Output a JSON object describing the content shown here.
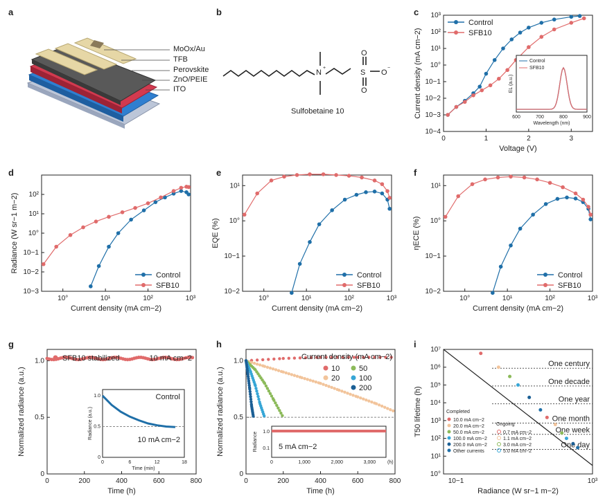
{
  "panel_letters": [
    "a",
    "b",
    "c",
    "d",
    "e",
    "f",
    "g",
    "h",
    "i"
  ],
  "device": {
    "layers": [
      "MoOx/Au",
      "TFB",
      "Perovskite",
      "ZnO/PEIE",
      "ITO"
    ]
  },
  "molecule": {
    "name": "Sulfobetaine 10"
  },
  "colors": {
    "control": "#1f6fa8",
    "sfb10": "#e06b6b",
    "peach": "#f2c49b",
    "green": "#8cba5a",
    "cyan": "#37a6d6",
    "dark": "#1b5f95"
  },
  "chart_data": [
    {
      "id": "c",
      "type": "line",
      "xlabel": "Voltage (V)",
      "ylabel": "Current density (mA cm−2)",
      "xlim": [
        0,
        3.5
      ],
      "ylim_log10": [
        -4,
        3
      ],
      "xticks": [
        "0",
        "1",
        "2",
        "3"
      ],
      "yticks": [
        "10−4",
        "10−3",
        "10−2",
        "10−1",
        "10°",
        "10¹",
        "10²",
        "10³"
      ],
      "legend": "top-left",
      "series": [
        {
          "name": "Control",
          "x": [
            0.1,
            0.3,
            0.5,
            0.7,
            0.85,
            1.0,
            1.2,
            1.4,
            1.6,
            1.8,
            2.0,
            2.3,
            2.6,
            3.0,
            3.2
          ],
          "y": [
            0.001,
            0.003,
            0.007,
            0.02,
            0.05,
            0.3,
            2,
            10,
            35,
            90,
            180,
            350,
            550,
            800,
            900
          ]
        },
        {
          "name": "SFB10",
          "x": [
            0.1,
            0.3,
            0.5,
            0.7,
            0.9,
            1.1,
            1.3,
            1.5,
            1.7,
            2.0,
            2.3,
            2.6,
            3.0,
            3.3
          ],
          "y": [
            0.001,
            0.003,
            0.006,
            0.015,
            0.03,
            0.06,
            0.15,
            0.5,
            2,
            12,
            50,
            140,
            350,
            650
          ]
        }
      ],
      "inset": {
        "xlabel": "Wavelength (nm)",
        "ylabel": "EL (a.u.)",
        "xlim": [
          600,
          900
        ],
        "xticks": [
          "600",
          "700",
          "800",
          "900"
        ],
        "legend": [
          "Control",
          "SFB10"
        ],
        "peak": 800
      }
    },
    {
      "id": "d",
      "type": "line",
      "xlabel": "Current density (mA cm−2)",
      "ylabel": "Radiance (W sr−1 m−2)",
      "xlim_log10": [
        -0.5,
        3
      ],
      "ylim_log10": [
        -3,
        3
      ],
      "xticks": [
        "10°",
        "10¹",
        "10²",
        "10³"
      ],
      "yticks": [
        "10−3",
        "10−2",
        "10−1",
        "10°",
        "10¹",
        "10²"
      ],
      "legend": "bottom-right",
      "series": [
        {
          "name": "Control",
          "x": [
            4.5,
            7,
            12,
            20,
            40,
            80,
            150,
            250,
            400,
            600,
            800,
            900
          ],
          "y": [
            0.0018,
            0.02,
            0.2,
            1,
            5,
            15,
            40,
            70,
            110,
            150,
            130,
            100
          ]
        },
        {
          "name": "SFB10",
          "x": [
            0.35,
            0.7,
            1.5,
            3,
            6,
            12,
            25,
            50,
            100,
            200,
            400,
            600,
            800,
            900
          ],
          "y": [
            0.025,
            0.2,
            0.8,
            2,
            4,
            7,
            12,
            20,
            35,
            70,
            150,
            220,
            250,
            240
          ]
        }
      ]
    },
    {
      "id": "e",
      "type": "line",
      "xlabel": "Current density (mA cm−2)",
      "ylabel": "EQE (%)",
      "xlim_log10": [
        -0.5,
        3
      ],
      "ylim_log10": [
        -2,
        1.3
      ],
      "xticks": [
        "10°",
        "10¹",
        "10²",
        "10³"
      ],
      "yticks": [
        "10−2",
        "10−1",
        "10°",
        "10¹"
      ],
      "legend": "bottom-right",
      "series": [
        {
          "name": "Control",
          "x": [
            4.5,
            7,
            12,
            20,
            40,
            80,
            150,
            250,
            400,
            600,
            800,
            900
          ],
          "y": [
            0.009,
            0.06,
            0.25,
            0.8,
            2,
            4,
            5.5,
            6.5,
            6.8,
            6,
            4,
            2.2
          ]
        },
        {
          "name": "SFB10",
          "x": [
            0.35,
            0.7,
            1.5,
            3,
            6,
            12,
            25,
            50,
            100,
            200,
            400,
            600,
            800,
            900
          ],
          "y": [
            1.5,
            6,
            14,
            18,
            20,
            21,
            21,
            20,
            19,
            17,
            14,
            11,
            7,
            4.5
          ]
        }
      ]
    },
    {
      "id": "f",
      "type": "line",
      "xlabel": "Current density (mA cm−2)",
      "ylabel": "ηECE (%)",
      "xlim_log10": [
        -0.5,
        3
      ],
      "ylim_log10": [
        -2,
        1.3
      ],
      "xticks": [
        "10°",
        "10¹",
        "10²",
        "10³"
      ],
      "yticks": [
        "10−2",
        "10−1",
        "10°",
        "10¹"
      ],
      "legend": "bottom-right",
      "series": [
        {
          "name": "Control",
          "x": [
            4.5,
            7,
            12,
            20,
            40,
            80,
            150,
            250,
            400,
            600,
            800,
            900
          ],
          "y": [
            0.009,
            0.05,
            0.2,
            0.6,
            1.5,
            3,
            4.2,
            4.6,
            4.3,
            3.4,
            2.2,
            1.1
          ]
        },
        {
          "name": "SFB10",
          "x": [
            0.35,
            0.7,
            1.5,
            3,
            6,
            12,
            25,
            50,
            100,
            200,
            400,
            600,
            800,
            900
          ],
          "y": [
            1.3,
            5,
            11,
            15,
            17,
            18,
            17,
            15,
            12,
            9,
            6,
            4,
            2.5,
            1.5
          ]
        }
      ]
    },
    {
      "id": "g",
      "type": "scatter",
      "xlabel": "Time (h)",
      "ylabel": "Normalized radiance (a.u.)",
      "xlim": [
        0,
        800
      ],
      "ylim": [
        0,
        1.1
      ],
      "xticks": [
        "0",
        "200",
        "400",
        "600",
        "800"
      ],
      "yticks": [
        "0",
        "0.5",
        "1.0"
      ],
      "legend": "SFB10 stabilized",
      "annotation": "10 mA cm−2",
      "series": [
        {
          "name": "SFB10 stabilized",
          "x_range": [
            0,
            780
          ],
          "y": 1.02
        }
      ],
      "inset": {
        "title": "Control",
        "annotation": "10 mA cm−2",
        "xlabel": "Time (min)",
        "ylabel": "Radiance (a.u.)",
        "xlim": [
          0,
          18
        ],
        "ylim": [
          0,
          1.1
        ],
        "xticks": [
          "0",
          "6",
          "12",
          "18"
        ],
        "yticks": [
          "0",
          "0.5",
          "1.0"
        ],
        "x": [
          0,
          2,
          4,
          6,
          8,
          10,
          12,
          14,
          16
        ],
        "y": [
          1.0,
          0.85,
          0.74,
          0.66,
          0.6,
          0.55,
          0.52,
          0.5,
          0.49
        ]
      }
    },
    {
      "id": "h",
      "type": "scatter",
      "xlabel": "Time (h)",
      "ylabel": "Normalized radiance (a.u.)",
      "xlim": [
        0,
        800
      ],
      "ylim": [
        0,
        1.1
      ],
      "xticks": [
        "0",
        "200",
        "400",
        "600",
        "800"
      ],
      "yticks": [
        "0",
        "0.5",
        "1.0"
      ],
      "legend_title": "Current density (mA cm−2)",
      "series": [
        {
          "name": "10",
          "x": [
            0,
            200,
            400,
            600,
            800
          ],
          "y": [
            1.0,
            1.02,
            1.03,
            1.03,
            1.03
          ]
        },
        {
          "name": "20",
          "x": [
            0,
            100,
            200,
            300,
            400,
            500,
            600,
            700,
            800
          ],
          "y": [
            1.0,
            0.95,
            0.9,
            0.85,
            0.8,
            0.74,
            0.68,
            0.62,
            0.55
          ]
        },
        {
          "name": "50",
          "x": [
            0,
            50,
            100,
            150,
            200
          ],
          "y": [
            1.0,
            0.92,
            0.8,
            0.65,
            0.5
          ]
        },
        {
          "name": "100",
          "x": [
            0,
            25,
            50,
            75,
            100
          ],
          "y": [
            1.0,
            0.9,
            0.78,
            0.62,
            0.5
          ]
        },
        {
          "name": "200",
          "x": [
            0,
            10,
            20,
            30,
            40
          ],
          "y": [
            1.0,
            0.88,
            0.75,
            0.6,
            0.5
          ]
        }
      ],
      "inset": {
        "annotation": "5 mA cm−2",
        "xlabel": "(h)",
        "ylabel": "Radiance",
        "xlim": [
          0,
          3500
        ],
        "xticks": [
          "0",
          "1,000",
          "2,000",
          "3,000"
        ],
        "yticks": [
          "0.1",
          "1.0"
        ],
        "x": [
          0,
          500,
          1000,
          1500,
          2000,
          2500,
          3000,
          3500
        ],
        "y": [
          1.0,
          1.0,
          1.0,
          1.0,
          1.0,
          1.0,
          1.0,
          1.0
        ]
      }
    },
    {
      "id": "i",
      "type": "scatter",
      "xlabel": "Radiance (W sr−1 m−2)",
      "ylabel": "T50 lifetime (h)",
      "xlim_log10": [
        -1,
        3
      ],
      "ylim_log10": [
        0,
        7
      ],
      "yticks": [
        "10°",
        "10¹",
        "10²",
        "10³",
        "10⁴",
        "10⁵",
        "10⁶",
        "10⁷"
      ],
      "xticks": [
        "10−1",
        "10³"
      ],
      "reference_lines": [
        {
          "label": "One century",
          "value": 876000
        },
        {
          "label": "One decade",
          "value": 87600
        },
        {
          "label": "One year",
          "value": 8760
        },
        {
          "label": "One month",
          "value": 720
        },
        {
          "label": "One week",
          "value": 168
        },
        {
          "label": "One day",
          "value": 24
        }
      ],
      "legend_completed_title": "Completed",
      "legend_completed": [
        "10.0 mA cm−2",
        "20.0 mA cm−2",
        "50.0 mA cm−2",
        "100.0 mA cm−2",
        "200.0 mA cm−2",
        "Other currents"
      ],
      "legend_ongoing_title": "Ongoing",
      "legend_ongoing": [
        "0.7 mA cm−2",
        "1.1 mA cm−2",
        "3.0 mA cm−2",
        "5.0 mA cm−2"
      ],
      "fit_line": {
        "x": [
          0.1,
          1000
        ],
        "y": [
          10000000,
          3
        ]
      },
      "points": {
        "x": [
          1,
          3,
          6,
          10,
          20,
          40,
          60,
          100,
          150,
          200,
          300,
          400
        ],
        "y": [
          6000000,
          1000000,
          300000,
          100000,
          20000,
          4000,
          1500,
          600,
          200,
          100,
          50,
          30
        ]
      }
    }
  ]
}
